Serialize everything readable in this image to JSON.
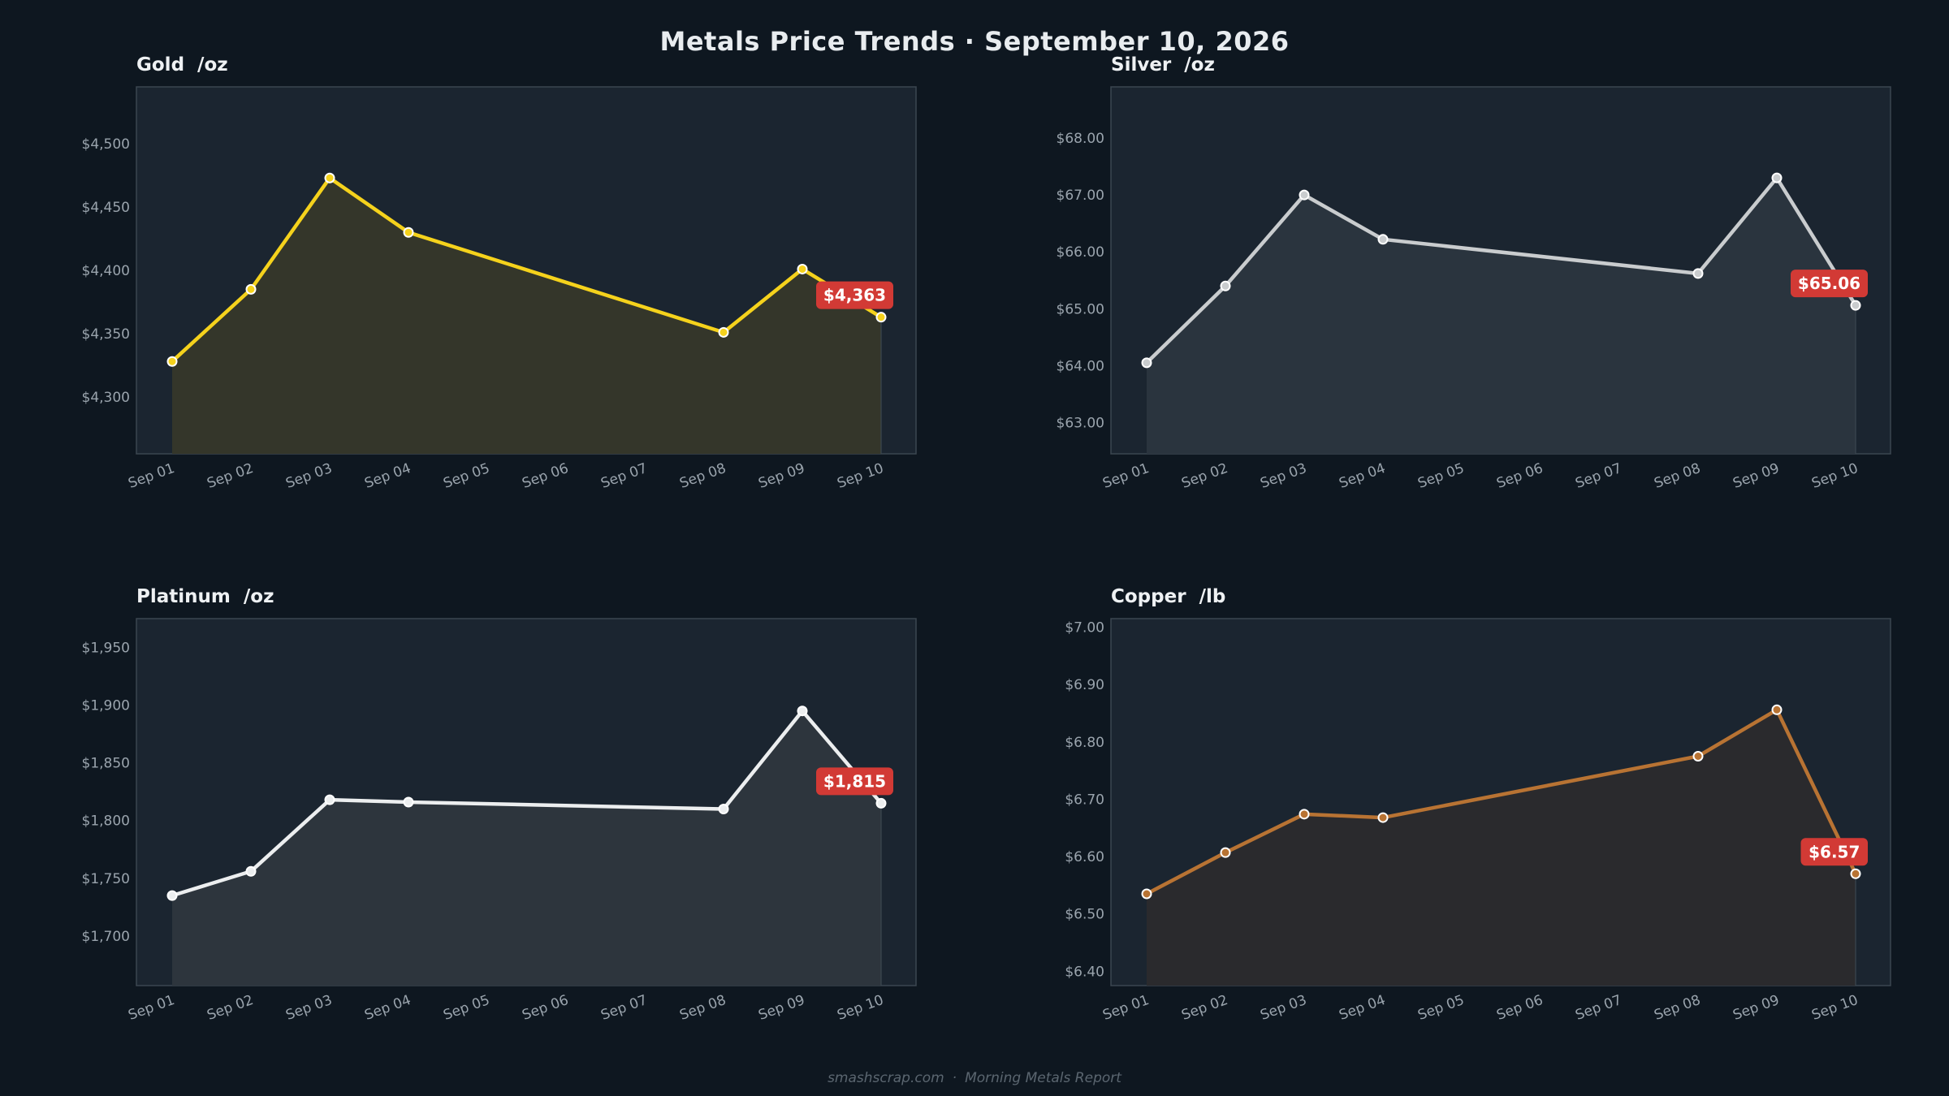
{
  "page": {
    "title": "Metals Price Trends  ·  September 10, 2026",
    "footer_site": "smashscrap.com",
    "footer_separator": "·",
    "footer_report": "Morning Metals Report"
  },
  "colors": {
    "background": "#0e1720",
    "plot_background": "#1b2530",
    "plot_border": "#3b4750",
    "callout": "#d23a35"
  },
  "chart_data": [
    {
      "type": "area",
      "key": "gold",
      "title": "Gold  /oz",
      "color": "#f5d21c",
      "fill": "#34362a",
      "categories": [
        "Sep 01",
        "Sep 02",
        "Sep 03",
        "Sep 04",
        "Sep 05",
        "Sep 06",
        "Sep 07",
        "Sep 08",
        "Sep 09",
        "Sep 10"
      ],
      "points": [
        {
          "x": "Sep 01",
          "y": 4328
        },
        {
          "x": "Sep 02",
          "y": 4385
        },
        {
          "x": "Sep 03",
          "y": 4473
        },
        {
          "x": "Sep 04",
          "y": 4430
        },
        {
          "x": "Sep 08",
          "y": 4351
        },
        {
          "x": "Sep 09",
          "y": 4401
        },
        {
          "x": "Sep 10",
          "y": 4363
        }
      ],
      "ylim": [
        4255,
        4545
      ],
      "yticks": [
        4300,
        4350,
        4400,
        4450,
        4500
      ],
      "ytick_labels": [
        "$4,300",
        "$4,350",
        "$4,400",
        "$4,450",
        "$4,500"
      ],
      "callout": "$4,363"
    },
    {
      "type": "area",
      "key": "silver",
      "title": "Silver  /oz",
      "color": "#c9ccce",
      "fill": "#2a343e",
      "categories": [
        "Sep 01",
        "Sep 02",
        "Sep 03",
        "Sep 04",
        "Sep 05",
        "Sep 06",
        "Sep 07",
        "Sep 08",
        "Sep 09",
        "Sep 10"
      ],
      "points": [
        {
          "x": "Sep 01",
          "y": 64.05
        },
        {
          "x": "Sep 02",
          "y": 65.4
        },
        {
          "x": "Sep 03",
          "y": 67.0
        },
        {
          "x": "Sep 04",
          "y": 66.22
        },
        {
          "x": "Sep 08",
          "y": 65.62
        },
        {
          "x": "Sep 09",
          "y": 67.3
        },
        {
          "x": "Sep 10",
          "y": 65.06
        }
      ],
      "ylim": [
        62.45,
        68.9
      ],
      "yticks": [
        63,
        64,
        65,
        66,
        67,
        68
      ],
      "ytick_labels": [
        "$63.00",
        "$64.00",
        "$65.00",
        "$66.00",
        "$67.00",
        "$68.00"
      ],
      "callout": "$65.06"
    },
    {
      "type": "area",
      "key": "platinum",
      "title": "Platinum  /oz",
      "color": "#eceeef",
      "fill": "#2d353d",
      "categories": [
        "Sep 01",
        "Sep 02",
        "Sep 03",
        "Sep 04",
        "Sep 05",
        "Sep 06",
        "Sep 07",
        "Sep 08",
        "Sep 09",
        "Sep 10"
      ],
      "points": [
        {
          "x": "Sep 01",
          "y": 1735
        },
        {
          "x": "Sep 02",
          "y": 1756
        },
        {
          "x": "Sep 03",
          "y": 1818
        },
        {
          "x": "Sep 04",
          "y": 1816
        },
        {
          "x": "Sep 08",
          "y": 1810
        },
        {
          "x": "Sep 09",
          "y": 1895
        },
        {
          "x": "Sep 10",
          "y": 1815
        }
      ],
      "ylim": [
        1657,
        1975
      ],
      "yticks": [
        1700,
        1750,
        1800,
        1850,
        1900,
        1950
      ],
      "ytick_labels": [
        "$1,700",
        "$1,750",
        "$1,800",
        "$1,850",
        "$1,900",
        "$1,950"
      ],
      "callout": "$1,815"
    },
    {
      "type": "area",
      "key": "copper",
      "title": "Copper  /lb",
      "color": "#b87333",
      "fill": "#2a2a2d",
      "categories": [
        "Sep 01",
        "Sep 02",
        "Sep 03",
        "Sep 04",
        "Sep 05",
        "Sep 06",
        "Sep 07",
        "Sep 08",
        "Sep 09",
        "Sep 10"
      ],
      "points": [
        {
          "x": "Sep 01",
          "y": 6.535
        },
        {
          "x": "Sep 02",
          "y": 6.607
        },
        {
          "x": "Sep 03",
          "y": 6.674
        },
        {
          "x": "Sep 04",
          "y": 6.668
        },
        {
          "x": "Sep 08",
          "y": 6.775
        },
        {
          "x": "Sep 09",
          "y": 6.856
        },
        {
          "x": "Sep 10",
          "y": 6.57
        }
      ],
      "ylim": [
        6.375,
        7.015
      ],
      "yticks": [
        6.4,
        6.5,
        6.6,
        6.7,
        6.8,
        6.9,
        7.0
      ],
      "ytick_labels": [
        "$6.40",
        "$6.50",
        "$6.60",
        "$6.70",
        "$6.80",
        "$6.90",
        "$7.00"
      ],
      "callout": "$6.57"
    }
  ]
}
